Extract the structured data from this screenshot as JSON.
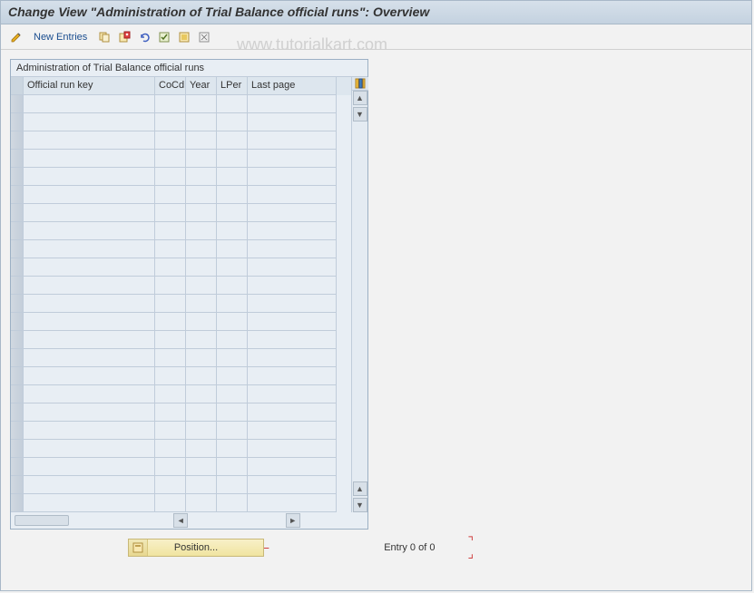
{
  "colors": {
    "title_bg_top": "#d6e0ea",
    "title_bg_bottom": "#c4d2e0",
    "panel_bg": "#e8eef4",
    "border": "#9cb0c4",
    "grid_line": "#c0ccda",
    "header_bg": "#dde6ee",
    "row_selector": "#cbd6e0",
    "position_bg": "#f0e4a0",
    "bracket_color": "#d04040"
  },
  "title": "Change View \"Administration of Trial Balance official runs\": Overview",
  "watermark": "www.tutorialkart.com",
  "toolbar": {
    "new_entries_label": "New Entries"
  },
  "panel": {
    "title": "Administration of Trial Balance official runs",
    "columns": {
      "key": "Official run key",
      "cocd": "CoCd",
      "year": "Year",
      "lper": "LPer",
      "last": "Last page"
    },
    "row_count": 23
  },
  "footer": {
    "position_label": "Position...",
    "entry_status": "Entry 0 of 0"
  }
}
